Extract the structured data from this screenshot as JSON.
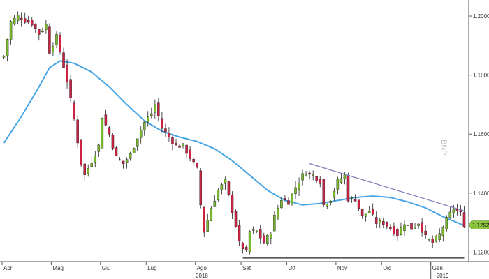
{
  "chart_data": {
    "type": "candlestick",
    "title": "",
    "watermark": "BNP",
    "xlabel": "",
    "ylabel": "",
    "ylim": [
      1.1175,
      1.2045
    ],
    "y_ticks": [
      1.12,
      1.14,
      1.16,
      1.18,
      1.2
    ],
    "y_tick_labels": [
      "1.1200",
      "1.1400",
      "1.1600",
      "1.1800",
      "1.2000"
    ],
    "y_axis_position": "right",
    "x_months": [
      "Apr",
      "Mag",
      "Giu",
      "Lug",
      "Ago",
      "Set",
      "Ott",
      "Nov",
      "Dic",
      "Gen"
    ],
    "x_years": [
      "2018",
      "2019"
    ],
    "last_price_label": "1.1292",
    "grid": false,
    "colors": {
      "up": "#77b82a",
      "down": "#cc2244",
      "wick": "#222222",
      "ma": "#49a6e6",
      "resistance": "#7d7fb8",
      "support": "#222222",
      "price_tag": "#8dc63f"
    },
    "price_anchors": [
      [
        0,
        1.1865
      ],
      [
        2,
        1.198
      ],
      [
        4,
        1.2
      ],
      [
        6,
        1.1985
      ],
      [
        8,
        1.1975
      ],
      [
        10,
        1.194
      ],
      [
        12,
        1.197
      ],
      [
        13,
        1.188
      ],
      [
        15,
        1.193
      ],
      [
        18,
        1.178
      ],
      [
        20,
        1.165
      ],
      [
        22,
        1.15
      ],
      [
        23,
        1.146
      ],
      [
        25,
        1.151
      ],
      [
        27,
        1.156
      ],
      [
        28,
        1.166
      ],
      [
        30,
        1.16
      ],
      [
        32,
        1.152
      ],
      [
        34,
        1.15
      ],
      [
        36,
        1.153
      ],
      [
        38,
        1.159
      ],
      [
        40,
        1.164
      ],
      [
        42,
        1.167
      ],
      [
        43,
        1.17
      ],
      [
        45,
        1.162
      ],
      [
        47,
        1.159
      ],
      [
        49,
        1.156
      ],
      [
        51,
        1.156
      ],
      [
        53,
        1.152
      ],
      [
        55,
        1.148
      ],
      [
        56,
        1.136
      ],
      [
        57,
        1.127
      ],
      [
        59,
        1.135
      ],
      [
        61,
        1.141
      ],
      [
        63,
        1.144
      ],
      [
        64,
        1.139
      ],
      [
        66,
        1.129
      ],
      [
        67,
        1.123
      ],
      [
        69,
        1.12
      ],
      [
        70,
        1.127
      ],
      [
        72,
        1.127
      ],
      [
        74,
        1.123
      ],
      [
        76,
        1.127
      ],
      [
        77,
        1.132
      ],
      [
        79,
        1.138
      ],
      [
        81,
        1.137
      ],
      [
        83,
        1.142
      ],
      [
        85,
        1.146
      ],
      [
        86,
        1.147
      ],
      [
        88,
        1.146
      ],
      [
        90,
        1.144
      ],
      [
        91,
        1.136
      ],
      [
        93,
        1.138
      ],
      [
        95,
        1.144
      ],
      [
        97,
        1.146
      ],
      [
        98,
        1.138
      ],
      [
        100,
        1.138
      ],
      [
        102,
        1.132
      ],
      [
        104,
        1.134
      ],
      [
        106,
        1.13
      ],
      [
        108,
        1.13
      ],
      [
        110,
        1.128
      ],
      [
        112,
        1.126
      ],
      [
        114,
        1.13
      ],
      [
        116,
        1.128
      ],
      [
        118,
        1.13
      ],
      [
        120,
        1.125
      ],
      [
        122,
        1.123
      ],
      [
        124,
        1.126
      ],
      [
        126,
        1.131
      ],
      [
        128,
        1.135
      ],
      [
        130,
        1.133
      ],
      [
        131,
        1.1292
      ]
    ],
    "moving_average": [
      [
        0,
        1.157
      ],
      [
        5,
        1.166
      ],
      [
        10,
        1.176
      ],
      [
        13,
        1.1825
      ],
      [
        16,
        1.1848
      ],
      [
        20,
        1.184
      ],
      [
        25,
        1.181
      ],
      [
        30,
        1.176
      ],
      [
        35,
        1.17
      ],
      [
        40,
        1.1645
      ],
      [
        45,
        1.161
      ],
      [
        50,
        1.159
      ],
      [
        55,
        1.1575
      ],
      [
        60,
        1.155
      ],
      [
        65,
        1.151
      ],
      [
        70,
        1.146
      ],
      [
        75,
        1.141
      ],
      [
        80,
        1.1375
      ],
      [
        85,
        1.136
      ],
      [
        90,
        1.1365
      ],
      [
        95,
        1.1375
      ],
      [
        100,
        1.1385
      ],
      [
        105,
        1.139
      ],
      [
        110,
        1.1385
      ],
      [
        115,
        1.137
      ],
      [
        120,
        1.135
      ],
      [
        125,
        1.132
      ],
      [
        131,
        1.129
      ]
    ],
    "resistance_line": [
      [
        87,
        1.15
      ],
      [
        131,
        1.134
      ]
    ],
    "support_line": [
      [
        68,
        1.118
      ],
      [
        131,
        1.118
      ]
    ],
    "month_start_index": [
      0,
      14,
      28,
      41,
      55,
      68,
      81,
      95,
      108,
      122
    ],
    "year_start_index": [
      122
    ]
  }
}
